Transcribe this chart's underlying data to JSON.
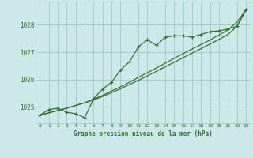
{
  "title": "Graphe pression niveau de la mer (hPa)",
  "x_labels": [
    "0",
    "1",
    "2",
    "3",
    "4",
    "5",
    "6",
    "7",
    "8",
    "9",
    "10",
    "11",
    "12",
    "13",
    "14",
    "15",
    "16",
    "17",
    "18",
    "19",
    "20",
    "21",
    "22",
    "23"
  ],
  "hours": [
    0,
    1,
    2,
    3,
    4,
    5,
    6,
    7,
    8,
    9,
    10,
    11,
    12,
    13,
    14,
    15,
    16,
    17,
    18,
    19,
    20,
    21,
    22,
    23
  ],
  "pressure": [
    1024.7,
    1024.9,
    1024.95,
    1024.8,
    1024.75,
    1024.6,
    1025.3,
    1025.65,
    1025.9,
    1026.35,
    1026.65,
    1027.2,
    1027.45,
    1027.25,
    1027.55,
    1027.6,
    1027.6,
    1027.55,
    1027.65,
    1027.75,
    1027.78,
    1027.85,
    1027.95,
    1028.55
  ],
  "smooth1": [
    1024.7,
    1024.78,
    1024.87,
    1024.95,
    1025.05,
    1025.15,
    1025.25,
    1025.38,
    1025.52,
    1025.66,
    1025.82,
    1025.97,
    1026.13,
    1026.3,
    1026.47,
    1026.63,
    1026.8,
    1026.97,
    1027.13,
    1027.3,
    1027.47,
    1027.65,
    1027.95,
    1028.55
  ],
  "smooth2": [
    1024.7,
    1024.78,
    1024.87,
    1024.95,
    1025.05,
    1025.15,
    1025.28,
    1025.42,
    1025.58,
    1025.73,
    1025.9,
    1026.08,
    1026.25,
    1026.42,
    1026.6,
    1026.78,
    1026.95,
    1027.12,
    1027.28,
    1027.45,
    1027.63,
    1027.82,
    1028.1,
    1028.55
  ],
  "line_color": "#2d6e2d",
  "bg_color": "#cce8e8",
  "grid_color": "#9fc8c8",
  "ylim": [
    1024.4,
    1028.85
  ],
  "yticks": [
    1025,
    1026,
    1027,
    1028
  ]
}
